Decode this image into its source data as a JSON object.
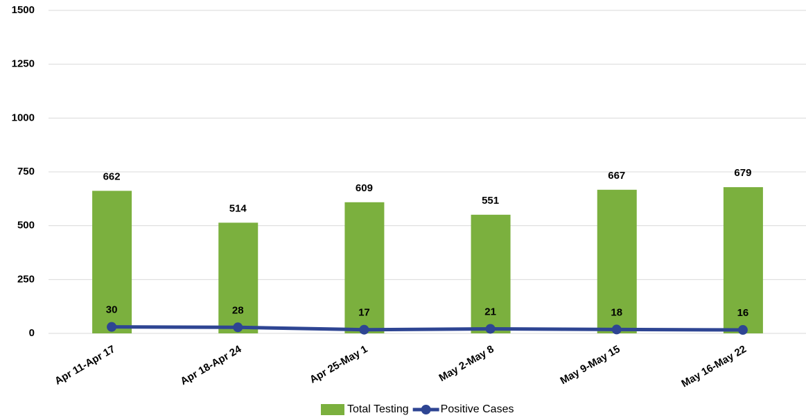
{
  "chart_data": {
    "type": "combo",
    "categories": [
      "Apr 11-Apr 17",
      "Apr 18-Apr 24",
      "Apr 25-May 1",
      "May 2-May 8",
      "May 9-May 15",
      "May 16-May 22"
    ],
    "series": [
      {
        "name": "Total Testing",
        "type": "bar",
        "color": "#7bb03e",
        "values": [
          662,
          514,
          609,
          551,
          667,
          679
        ]
      },
      {
        "name": "Positive Cases",
        "type": "line",
        "color": "#2e4593",
        "values": [
          30,
          28,
          17,
          21,
          18,
          16
        ]
      }
    ],
    "ylim": [
      0,
      1500
    ],
    "yticks": [
      0,
      250,
      500,
      750,
      1000,
      1250,
      1500
    ],
    "grid": true,
    "legend": "bottom"
  }
}
